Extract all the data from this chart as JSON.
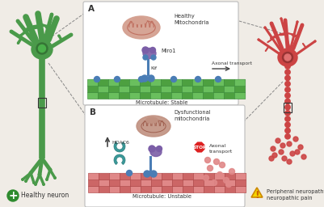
{
  "bg_color": "#f0ece6",
  "panel_border": "#bbbbbb",
  "green_color": "#4a9a4a",
  "green_dark": "#357535",
  "green_nucleus": "#2a6a2a",
  "red_color": "#cc4444",
  "red_dark": "#993333",
  "panel_A_label": "A",
  "panel_B_label": "B",
  "healthy_mito_label": "Healthy\nMitochondria",
  "dysfunc_mito_label": "Dysfunctional\nmitochondria",
  "miro1_label": "Miro1",
  "kif_label": "Kif",
  "axonal_transport_A": "Axonal transport",
  "axonal_transport_B": "Axonal\ntransport",
  "microtubule_stable": "Microtubule: Stable",
  "microtubule_unstable": "Microtubule: Unstable",
  "hdac6_label": "HDAC6",
  "stop_label": "STOP",
  "healthy_label": "Healthy neuron",
  "peripheral_label": "Peripheral neuropathy +\nneuropathic pain",
  "blue_dot": "#4a7db5",
  "blue_dark": "#2a5a8a",
  "teal_color": "#3a9a9a",
  "teal_dark": "#2a7a7a",
  "purple_color": "#7b5ea7",
  "mito_healthy_fill": "#d4a090",
  "mito_healthy_inner": "#c07060",
  "mito_dysfunc_fill": "#c09080",
  "mito_dysfunc_inner": "#a06050",
  "mt_green1": "#6abf5e",
  "mt_green2": "#4da040",
  "mt_green_edge": "#3a8a3a",
  "mt_red1": "#e08888",
  "mt_red2": "#cc6666",
  "mt_red_edge": "#aa4444",
  "stop_red": "#dd2020",
  "warning_yellow": "#f5d400",
  "plus_green": "#2e8b2e",
  "arrow_color": "#444444",
  "text_color": "#333333"
}
